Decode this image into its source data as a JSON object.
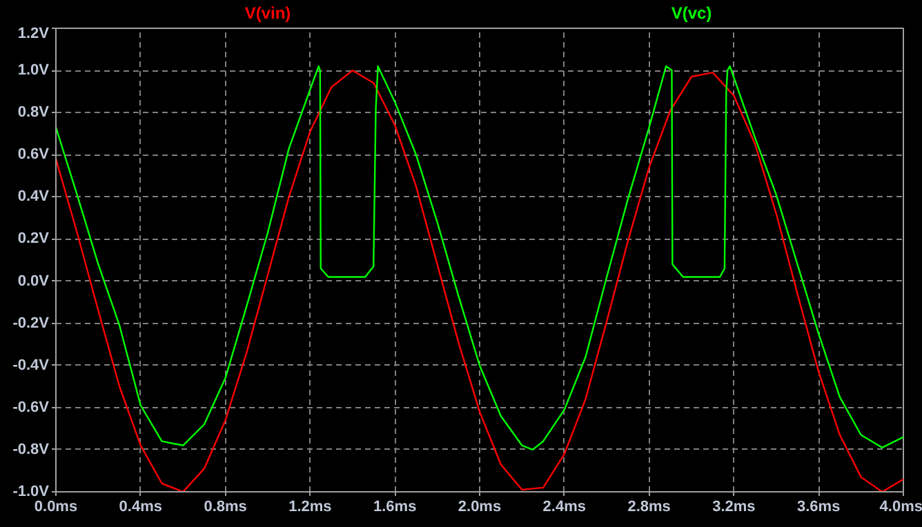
{
  "chart_data": {
    "type": "line",
    "grid": true,
    "line_style": "solid",
    "xlim": [
      0,
      4.0
    ],
    "ylim": [
      -1.0,
      1.2
    ],
    "xticks": [
      {
        "value": 0,
        "label": "0.0ms"
      },
      {
        "value": 0.4,
        "label": "0.4ms"
      },
      {
        "value": 0.8,
        "label": "0.8ms"
      },
      {
        "value": 1.2,
        "label": "1.2ms"
      },
      {
        "value": 1.6,
        "label": "1.6ms"
      },
      {
        "value": 2.0,
        "label": "2.0ms"
      },
      {
        "value": 2.4,
        "label": "2.4ms"
      },
      {
        "value": 2.8,
        "label": "2.8ms"
      },
      {
        "value": 3.2,
        "label": "3.2ms"
      },
      {
        "value": 3.6,
        "label": "3.6ms"
      },
      {
        "value": 4.0,
        "label": "4.0ms"
      }
    ],
    "yticks": [
      {
        "value": -1.0,
        "label": "-1.0V"
      },
      {
        "value": -0.8,
        "label": "-0.8V"
      },
      {
        "value": -0.6,
        "label": "-0.6V"
      },
      {
        "value": -0.4,
        "label": "-0.4V"
      },
      {
        "value": -0.2,
        "label": "-0.2V"
      },
      {
        "value": 0.0,
        "label": "0.0V"
      },
      {
        "value": 0.2,
        "label": "0.2V"
      },
      {
        "value": 0.4,
        "label": "0.4V"
      },
      {
        "value": 0.6,
        "label": "0.6V"
      },
      {
        "value": 0.8,
        "label": "0.8V"
      },
      {
        "value": 1.0,
        "label": "1.0V"
      },
      {
        "value": 1.2,
        "label": "1.2V"
      }
    ],
    "series": [
      {
        "name": "V(vin)",
        "color": "#ff0000",
        "x": [
          0,
          0.1,
          0.2,
          0.3,
          0.4,
          0.5,
          0.6,
          0.7,
          0.8,
          0.9,
          1.0,
          1.1,
          1.2,
          1.3,
          1.4,
          1.5,
          1.6,
          1.7,
          1.8,
          1.9,
          2.0,
          2.1,
          2.2,
          2.3,
          2.4,
          2.5,
          2.6,
          2.7,
          2.8,
          2.9,
          3.0,
          3.1,
          3.2,
          3.3,
          3.4,
          3.5,
          3.6,
          3.7,
          3.8,
          3.9,
          4.0
        ],
        "values": [
          0.58,
          0.23,
          -0.14,
          -0.5,
          -0.78,
          -0.96,
          -1.0,
          -0.89,
          -0.66,
          -0.34,
          0.03,
          0.4,
          0.71,
          0.92,
          1.0,
          0.94,
          0.74,
          0.45,
          0.08,
          -0.29,
          -0.62,
          -0.87,
          -0.99,
          -0.98,
          -0.82,
          -0.56,
          -0.19,
          0.19,
          0.54,
          0.81,
          0.97,
          0.99,
          0.88,
          0.65,
          0.32,
          -0.06,
          -0.43,
          -0.73,
          -0.93,
          -1.0,
          -0.94
        ]
      },
      {
        "name": "V(vc)",
        "color": "#00ff00",
        "x": [
          0,
          0.1,
          0.2,
          0.3,
          0.4,
          0.5,
          0.6,
          0.7,
          0.8,
          0.9,
          1.0,
          1.1,
          1.2,
          1.24,
          1.247,
          1.25,
          1.286,
          1.46,
          1.499,
          1.51,
          1.52,
          1.6,
          1.7,
          1.8,
          1.9,
          2.0,
          2.1,
          2.2,
          2.25,
          2.3,
          2.4,
          2.5,
          2.6,
          2.7,
          2.8,
          2.88,
          2.907,
          2.91,
          2.96,
          3.134,
          3.156,
          3.164,
          3.17,
          3.181,
          3.3,
          3.4,
          3.5,
          3.6,
          3.7,
          3.8,
          3.9,
          4.0
        ],
        "values": [
          0.73,
          0.41,
          0.08,
          -0.21,
          -0.59,
          -0.76,
          -0.78,
          -0.68,
          -0.46,
          -0.12,
          0.23,
          0.63,
          0.91,
          1.02,
          1.0,
          0.06,
          0.02,
          0.02,
          0.07,
          0.82,
          1.02,
          0.85,
          0.6,
          0.28,
          -0.07,
          -0.4,
          -0.64,
          -0.78,
          -0.8,
          -0.76,
          -0.61,
          -0.36,
          0.02,
          0.39,
          0.73,
          1.02,
          1.0,
          0.08,
          0.02,
          0.02,
          0.06,
          0.9,
          1.0,
          1.02,
          0.68,
          0.41,
          0.08,
          -0.25,
          -0.55,
          -0.73,
          -0.79,
          -0.74
        ]
      }
    ]
  }
}
